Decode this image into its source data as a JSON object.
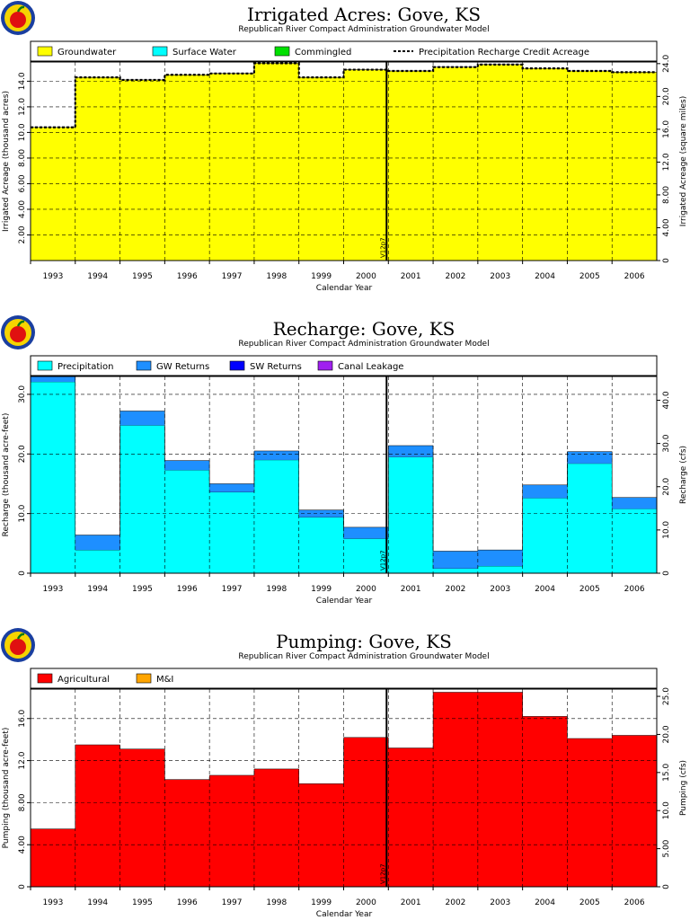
{
  "charts": [
    {
      "type": "area",
      "title": "Irrigated Acres: Gove, KS",
      "subtitle": "Republican River Compact Administration Groundwater Model",
      "xlabel": "Calendar Year",
      "ylabel": "Irrigated Acreage (thousand acres)",
      "ylabel_right": "Irrigated Acreage (square miles)",
      "categories": [
        "1993",
        "1994",
        "1995",
        "1996",
        "1997",
        "1998",
        "1999",
        "2000",
        "2001",
        "2002",
        "2003",
        "2004",
        "2005",
        "2006"
      ],
      "ylim": [
        0,
        15.5
      ],
      "yticks": [
        {
          "value": 2,
          "label": "2.00"
        },
        {
          "value": 4,
          "label": "4.00"
        },
        {
          "value": 6,
          "label": "6.00"
        },
        {
          "value": 8,
          "label": "8.00"
        },
        {
          "value": 10,
          "label": "10.0"
        },
        {
          "value": 12,
          "label": "12.0"
        },
        {
          "value": 14,
          "label": "14.0"
        }
      ],
      "ylim_right": [
        0,
        24.2
      ],
      "yticks_right": [
        {
          "value": 0,
          "label": "0"
        },
        {
          "value": 4,
          "label": "4.00"
        },
        {
          "value": 8,
          "label": "8.00"
        },
        {
          "value": 12,
          "label": "12.0"
        },
        {
          "value": 16,
          "label": "16.0"
        },
        {
          "value": 20,
          "label": "20.0"
        },
        {
          "value": 24,
          "label": "24.0"
        }
      ],
      "marker": {
        "position": 8,
        "label": "V12p7"
      },
      "series": [
        {
          "name": "Groundwater",
          "color": "#ffff00",
          "values": [
            10.4,
            14.3,
            14.1,
            14.5,
            14.6,
            15.4,
            14.3,
            14.9,
            14.8,
            15.1,
            15.3,
            15.0,
            14.8,
            14.7
          ]
        },
        {
          "name": "Surface Water",
          "color": "#00ffff",
          "values": [
            0,
            0,
            0,
            0,
            0,
            0,
            0,
            0,
            0,
            0,
            0,
            0,
            0,
            0
          ]
        },
        {
          "name": "Commingled",
          "color": "#00e000",
          "values": [
            0,
            0,
            0,
            0,
            0,
            0,
            0,
            0,
            0,
            0,
            0,
            0,
            0,
            0
          ]
        }
      ],
      "line": {
        "name": "Precipitation Recharge Credit Acreage",
        "values": [
          10.4,
          14.3,
          14.1,
          14.5,
          14.6,
          15.4,
          14.3,
          14.9,
          14.8,
          15.1,
          15.3,
          15.0,
          14.8,
          14.7
        ]
      }
    },
    {
      "type": "area",
      "title": "Recharge: Gove, KS",
      "subtitle": "Republican River Compact Administration Groundwater Model",
      "xlabel": "Calendar Year",
      "ylabel": "Recharge (thousand acre-feet)",
      "ylabel_right": "Recharge (cfs)",
      "categories": [
        "1993",
        "1994",
        "1995",
        "1996",
        "1997",
        "1998",
        "1999",
        "2000",
        "2001",
        "2002",
        "2003",
        "2004",
        "2005",
        "2006"
      ],
      "ylim": [
        0,
        33
      ],
      "yticks": [
        {
          "value": 0,
          "label": "0"
        },
        {
          "value": 10,
          "label": "10.0"
        },
        {
          "value": 20,
          "label": "20.0"
        },
        {
          "value": 30,
          "label": "30.0"
        }
      ],
      "ylim_right": [
        0,
        45.5
      ],
      "yticks_right": [
        {
          "value": 0,
          "label": "0"
        },
        {
          "value": 10,
          "label": "10.0"
        },
        {
          "value": 20,
          "label": "20.0"
        },
        {
          "value": 30,
          "label": "30.0"
        },
        {
          "value": 40,
          "label": "40.0"
        }
      ],
      "marker": {
        "position": 8,
        "label": "V12p7"
      },
      "series": [
        {
          "name": "Precipitation",
          "color": "#00ffff",
          "values": [
            32.1,
            3.9,
            24.8,
            17.3,
            13.6,
            19.0,
            9.4,
            5.8,
            19.5,
            0.8,
            1.2,
            12.6,
            18.4,
            10.8
          ]
        },
        {
          "name": "GW Returns",
          "color": "#1e8fff",
          "values": [
            0.9,
            2.5,
            2.4,
            1.6,
            1.4,
            1.5,
            1.2,
            1.9,
            1.9,
            2.9,
            2.7,
            2.2,
            2.0,
            1.9
          ]
        },
        {
          "name": "SW Returns",
          "color": "#0000ff",
          "values": [
            0,
            0,
            0,
            0,
            0,
            0,
            0,
            0,
            0,
            0,
            0,
            0,
            0,
            0
          ]
        },
        {
          "name": "Canal Leakage",
          "color": "#a020f0",
          "values": [
            0,
            0,
            0,
            0,
            0,
            0,
            0,
            0,
            0,
            0,
            0,
            0,
            0,
            0
          ]
        }
      ]
    },
    {
      "type": "area",
      "title": "Pumping: Gove, KS",
      "subtitle": "Republican River Compact Administration Groundwater Model",
      "xlabel": "Calendar Year",
      "ylabel": "Pumping (thousand acre-feet)",
      "ylabel_right": "Pumping (cfs)",
      "categories": [
        "1993",
        "1994",
        "1995",
        "1996",
        "1997",
        "1998",
        "1999",
        "2000",
        "2001",
        "2002",
        "2003",
        "2004",
        "2005",
        "2006"
      ],
      "ylim": [
        0,
        18.8
      ],
      "yticks": [
        {
          "value": 0,
          "label": "0"
        },
        {
          "value": 4,
          "label": "4.00"
        },
        {
          "value": 8,
          "label": "8.00"
        },
        {
          "value": 12,
          "label": "12.0"
        },
        {
          "value": 16,
          "label": "16.0"
        }
      ],
      "ylim_right": [
        0,
        25.95
      ],
      "yticks_right": [
        {
          "value": 0,
          "label": "0"
        },
        {
          "value": 5,
          "label": "5.00"
        },
        {
          "value": 10,
          "label": "10.0"
        },
        {
          "value": 15,
          "label": "15.0"
        },
        {
          "value": 20,
          "label": "20.0"
        },
        {
          "value": 25,
          "label": "25.0"
        }
      ],
      "marker": {
        "position": 8,
        "label": "V12p7"
      },
      "series": [
        {
          "name": "Agricultural",
          "color": "#ff0000",
          "values": [
            5.5,
            13.5,
            13.1,
            10.2,
            10.6,
            11.2,
            9.8,
            14.2,
            13.2,
            18.5,
            18.5,
            16.2,
            14.1,
            14.4
          ]
        },
        {
          "name": "M&I",
          "color": "#ffa500",
          "values": [
            0,
            0,
            0,
            0,
            0,
            0,
            0,
            0,
            0,
            0,
            0,
            0,
            0,
            0
          ]
        }
      ]
    }
  ],
  "logo_icon": "apple-logo-icon",
  "colors": {
    "outline": "#000000",
    "grid": "#000000"
  }
}
